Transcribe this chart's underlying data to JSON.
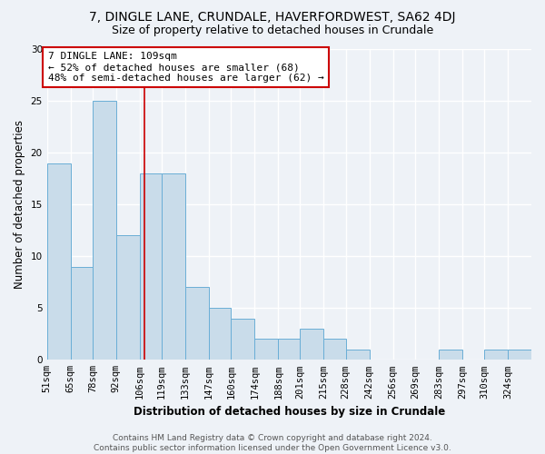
{
  "title1": "7, DINGLE LANE, CRUNDALE, HAVERFORDWEST, SA62 4DJ",
  "title2": "Size of property relative to detached houses in Crundale",
  "xlabel": "Distribution of detached houses by size in Crundale",
  "ylabel": "Number of detached properties",
  "bin_labels": [
    "51sqm",
    "65sqm",
    "78sqm",
    "92sqm",
    "106sqm",
    "119sqm",
    "133sqm",
    "147sqm",
    "160sqm",
    "174sqm",
    "188sqm",
    "201sqm",
    "215sqm",
    "228sqm",
    "242sqm",
    "256sqm",
    "269sqm",
    "283sqm",
    "297sqm",
    "310sqm",
    "324sqm"
  ],
  "bin_edges": [
    51,
    65,
    78,
    92,
    106,
    119,
    133,
    147,
    160,
    174,
    188,
    201,
    215,
    228,
    242,
    256,
    269,
    283,
    297,
    310,
    324,
    338
  ],
  "bar_heights": [
    19,
    9,
    25,
    12,
    18,
    18,
    7,
    5,
    4,
    2,
    2,
    3,
    2,
    1,
    0,
    0,
    0,
    1,
    0,
    1,
    1
  ],
  "bar_color": "#c9dcea",
  "bar_edge_color": "#6aaed6",
  "red_line_x": 109,
  "annotation_text_line1": "7 DINGLE LANE: 109sqm",
  "annotation_text_line2": "← 52% of detached houses are smaller (68)",
  "annotation_text_line3": "48% of semi-detached houses are larger (62) →",
  "annotation_box_edge_color": "#cc0000",
  "ylim": [
    0,
    30
  ],
  "yticks": [
    0,
    5,
    10,
    15,
    20,
    25,
    30
  ],
  "footer_line1": "Contains HM Land Registry data © Crown copyright and database right 2024.",
  "footer_line2": "Contains public sector information licensed under the Open Government Licence v3.0.",
  "background_color": "#eef2f7",
  "grid_color": "#ffffff",
  "title1_fontsize": 10,
  "title2_fontsize": 9,
  "axis_label_fontsize": 8.5,
  "tick_fontsize": 7.5,
  "annotation_fontsize": 8,
  "footer_fontsize": 6.5
}
